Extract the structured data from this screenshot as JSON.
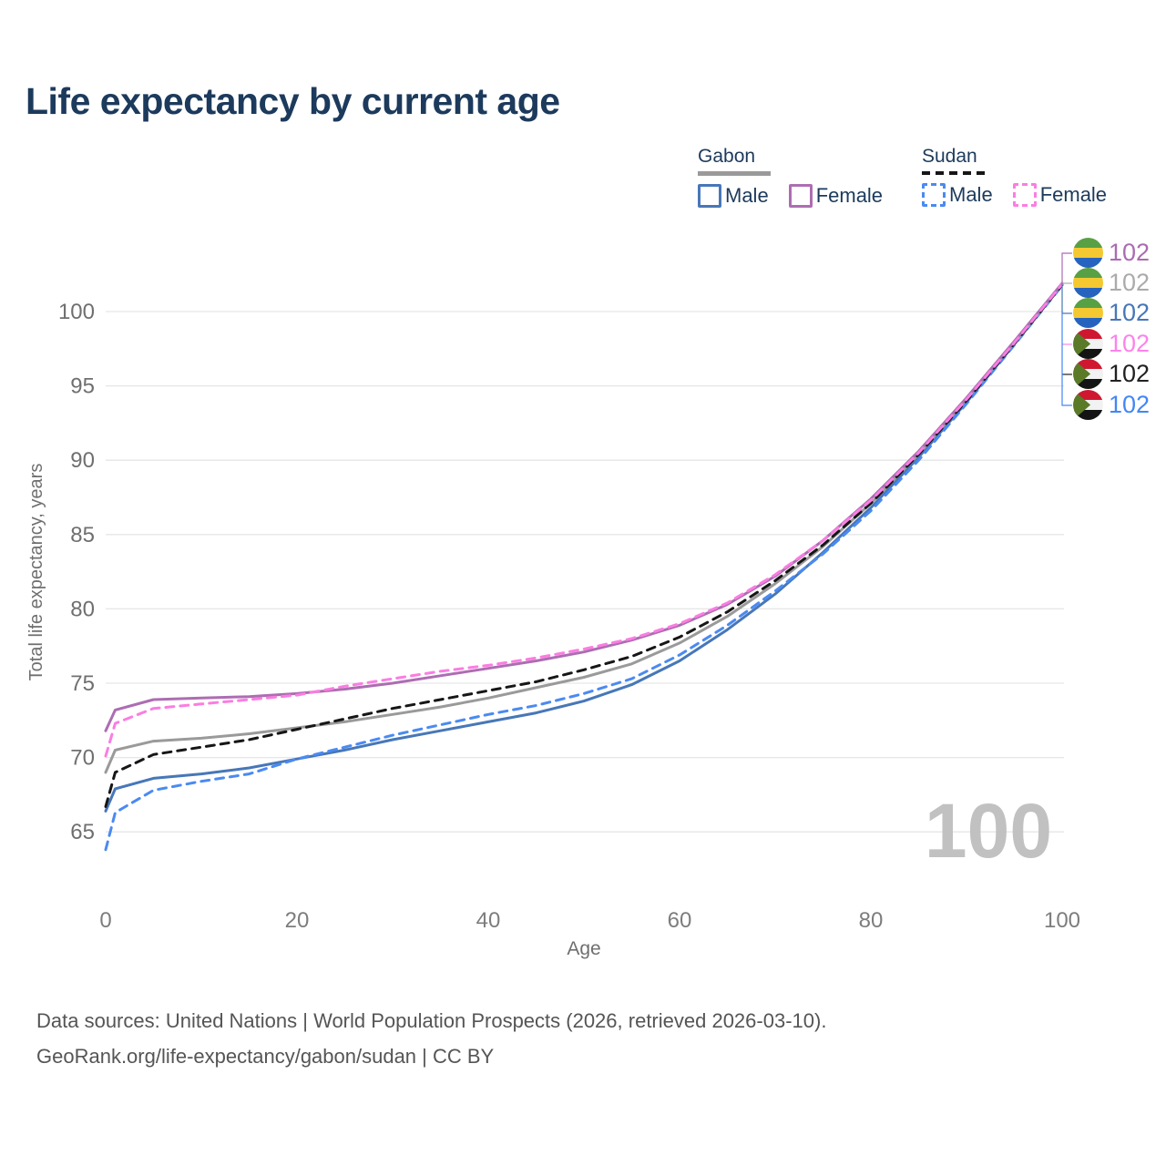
{
  "title": "Life expectancy by current age",
  "watermark": "100",
  "legend": {
    "groups": [
      {
        "label": "Gabon",
        "line_style": "solid",
        "underline_color": "#9a9a9a",
        "items": [
          {
            "label": "Male",
            "series": "gabon-male",
            "color": "#4777b8",
            "dashed": false
          },
          {
            "label": "Female",
            "series": "gabon-female",
            "color": "#ad6db2",
            "dashed": false
          }
        ]
      },
      {
        "label": "Sudan",
        "line_style": "dashed",
        "underline_color": "#161616",
        "items": [
          {
            "label": "Male",
            "series": "sudan-male",
            "color": "#4a8af2",
            "dashed": true
          },
          {
            "label": "Female",
            "series": "sudan-female",
            "color": "#fb7de2",
            "dashed": true
          }
        ]
      }
    ]
  },
  "chart_data": {
    "type": "line",
    "title": "Life expectancy by current age",
    "xlabel": "Age",
    "ylabel": "Total life expectancy, years",
    "xticks": [
      0,
      20,
      40,
      60,
      80,
      100
    ],
    "yticks": [
      65,
      70,
      75,
      80,
      85,
      90,
      95,
      100
    ],
    "xlim": [
      0,
      100
    ],
    "ylim": [
      63.5,
      102.5
    ],
    "grid": "horizontal",
    "legend_position": "top-right",
    "x": [
      0,
      1,
      5,
      10,
      15,
      20,
      25,
      30,
      35,
      40,
      45,
      50,
      55,
      60,
      65,
      70,
      75,
      80,
      85,
      90,
      95,
      100
    ],
    "series": [
      {
        "id": "gabon-male",
        "name": "Gabon Male",
        "country": "Gabon",
        "sex": "Male",
        "color": "#4777b8",
        "dash": "solid",
        "values": [
          66.4,
          67.9,
          68.6,
          68.9,
          69.3,
          69.9,
          70.5,
          71.2,
          71.8,
          72.4,
          73.0,
          73.8,
          74.9,
          76.5,
          78.6,
          81.0,
          83.8,
          86.8,
          90.2,
          93.9,
          97.8,
          101.8
        ]
      },
      {
        "id": "sudan-male",
        "name": "Sudan Male",
        "country": "Sudan",
        "sex": "Male",
        "color": "#4a8af2",
        "dash": "dashed",
        "values": [
          63.8,
          66.3,
          67.8,
          68.4,
          68.9,
          69.9,
          70.7,
          71.5,
          72.2,
          72.9,
          73.5,
          74.3,
          75.3,
          76.9,
          78.9,
          81.2,
          83.7,
          86.6,
          90.0,
          93.8,
          97.75,
          101.75
        ]
      },
      {
        "id": "gabon-both",
        "name": "Gabon Both sexes",
        "country": "Gabon",
        "sex": "Both",
        "color": "#9a9a9a",
        "dash": "solid",
        "values": [
          69.0,
          70.5,
          71.1,
          71.3,
          71.6,
          72.0,
          72.4,
          72.9,
          73.4,
          74.0,
          74.7,
          75.4,
          76.3,
          77.7,
          79.5,
          81.7,
          84.2,
          87.1,
          90.4,
          94.1,
          97.9,
          101.85
        ]
      },
      {
        "id": "sudan-both",
        "name": "Sudan Both sexes",
        "country": "Sudan",
        "sex": "Both",
        "color": "#161616",
        "dash": "dashed",
        "values": [
          66.7,
          69.0,
          70.2,
          70.7,
          71.2,
          71.9,
          72.6,
          73.3,
          73.9,
          74.5,
          75.1,
          75.9,
          76.8,
          78.1,
          79.8,
          81.9,
          84.3,
          87.1,
          90.4,
          94.0,
          97.85,
          101.8
        ]
      },
      {
        "id": "gabon-female",
        "name": "Gabon Female",
        "country": "Gabon",
        "sex": "Female",
        "color": "#ad6db2",
        "dash": "solid",
        "values": [
          71.8,
          73.2,
          73.9,
          74.0,
          74.1,
          74.3,
          74.6,
          75.0,
          75.5,
          76.0,
          76.5,
          77.1,
          77.9,
          78.9,
          80.3,
          82.2,
          84.6,
          87.4,
          90.6,
          94.2,
          98.0,
          101.9
        ]
      },
      {
        "id": "sudan-female",
        "name": "Sudan Female",
        "country": "Sudan",
        "sex": "Female",
        "color": "#fb7de2",
        "dash": "dashed",
        "values": [
          70.1,
          72.3,
          73.3,
          73.6,
          73.9,
          74.2,
          74.8,
          75.3,
          75.8,
          76.2,
          76.7,
          77.3,
          78.0,
          79.0,
          80.4,
          82.3,
          84.6,
          87.3,
          90.5,
          94.1,
          97.9,
          101.85
        ]
      }
    ]
  },
  "end_labels": [
    {
      "flag": "gabon",
      "series": "gabon-female",
      "value": "102",
      "color": "#ab6bb3"
    },
    {
      "flag": "gabon",
      "series": "gabon-both",
      "value": "102",
      "color": "#ababab"
    },
    {
      "flag": "gabon",
      "series": "gabon-male",
      "value": "102",
      "color": "#4777b8"
    },
    {
      "flag": "sudan",
      "series": "sudan-female",
      "value": "102",
      "color": "#fc83ea"
    },
    {
      "flag": "sudan",
      "series": "sudan-both",
      "value": "102",
      "color": "#212121"
    },
    {
      "flag": "sudan",
      "series": "sudan-male",
      "value": "102",
      "color": "#4287f5"
    }
  ],
  "footer": {
    "line1": "Data sources: United Nations | World Population Prospects (2026, retrieved 2026-03-10).",
    "line2": "GeoRank.org/life-expectancy/gabon/sudan | CC BY"
  }
}
